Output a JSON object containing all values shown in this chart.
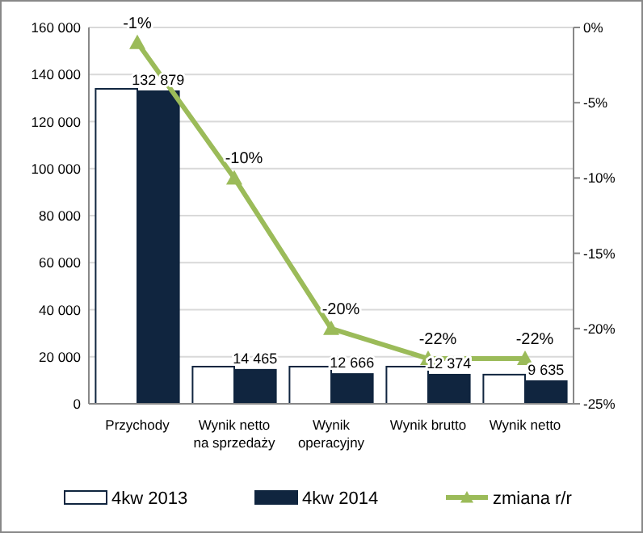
{
  "chart_data": {
    "type": "bar",
    "categories": [
      "Przychody",
      "Wynik netto na sprzedaży",
      "Wynik operacyjny",
      "Wynik brutto",
      "Wynik netto"
    ],
    "series": [
      {
        "name": "4kw 2013",
        "color": "#ffffff",
        "values": [
          133900,
          15800,
          15800,
          15800,
          12400
        ]
      },
      {
        "name": "4kw 2014",
        "color": "#10253f",
        "values": [
          132879,
          14465,
          12666,
          12374,
          9635
        ],
        "value_labels": [
          "132 879",
          "14 465",
          "12 666",
          "12 374",
          "9 635"
        ]
      },
      {
        "name": "zmiana r/r",
        "type": "line",
        "axis": "y2",
        "color": "#9bbb59",
        "marker": "triangle",
        "values": [
          -1,
          -10,
          -20,
          -22,
          -22
        ],
        "value_labels": [
          "-1%",
          "-10%",
          "-20%",
          "-22%",
          "-22%"
        ]
      }
    ],
    "ylim": [
      0,
      160000
    ],
    "yticks": [
      0,
      {
        "value": 20000,
        "label": "20 000"
      },
      {
        "value": 40000,
        "label": "40 000"
      },
      {
        "value": 60000,
        "label": "60 000"
      },
      {
        "value": 80000,
        "label": "80 000"
      },
      {
        "value": 100000,
        "label": "100 000"
      },
      {
        "value": 120000,
        "label": "120 000"
      },
      {
        "value": 140000,
        "label": "140 000"
      },
      {
        "value": 160000,
        "label": "160 000"
      }
    ],
    "y2lim": [
      -25,
      0
    ],
    "y2ticks": [
      {
        "value": 0,
        "label": "0%"
      },
      {
        "value": -5,
        "label": "-5%"
      },
      {
        "value": -10,
        "label": "-10%"
      },
      {
        "value": -15,
        "label": "-15%"
      },
      {
        "value": -20,
        "label": "-20%"
      },
      {
        "value": -25,
        "label": "-25%"
      }
    ],
    "grid": "y",
    "legend": "bottom"
  }
}
